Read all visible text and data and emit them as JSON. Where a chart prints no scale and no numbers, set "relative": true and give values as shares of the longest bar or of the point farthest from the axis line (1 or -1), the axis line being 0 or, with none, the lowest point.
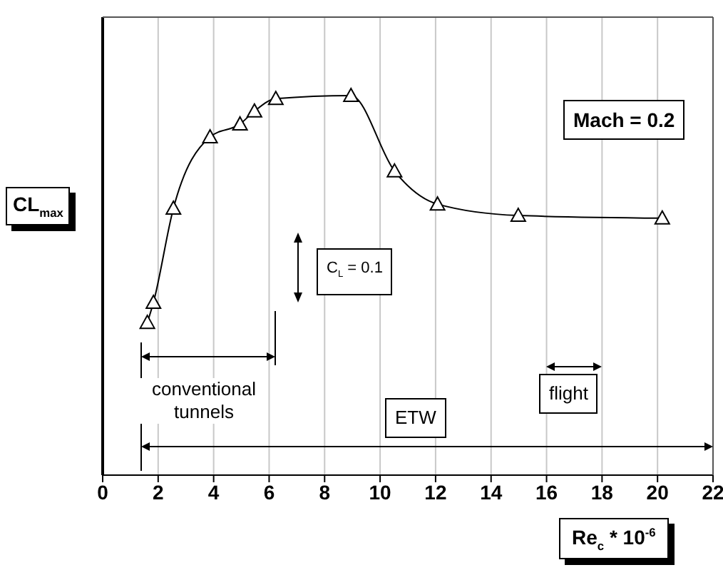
{
  "chart_data": {
    "type": "line",
    "relative": true,
    "ylabel": "CL$_{max}$",
    "xlabel": "Re$_{c}$ * 10$^{-6}$",
    "xlim": [
      0,
      22
    ],
    "xticks": [
      0,
      2,
      4,
      6,
      8,
      10,
      12,
      14,
      16,
      18,
      20,
      22
    ],
    "grid": "x",
    "marker": "triangle",
    "line_style": "solid",
    "legend": false,
    "series": [
      {
        "color": "#000000",
        "x": [
          1.61,
          1.83,
          2.55,
          3.87,
          4.95,
          5.47,
          6.24,
          8.95,
          10.52,
          12.07,
          14.98,
          20.17
        ],
        "values": [
          0.402,
          0.455,
          0.703,
          0.891,
          0.925,
          0.959,
          0.992,
          1,
          0.801,
          0.714,
          0.684,
          0.677
        ]
      }
    ],
    "annotations": [
      "Mach = 0.2",
      "C$_{L}$ = 0.1",
      "conventional tunnels",
      "flight",
      "ETW"
    ]
  }
}
